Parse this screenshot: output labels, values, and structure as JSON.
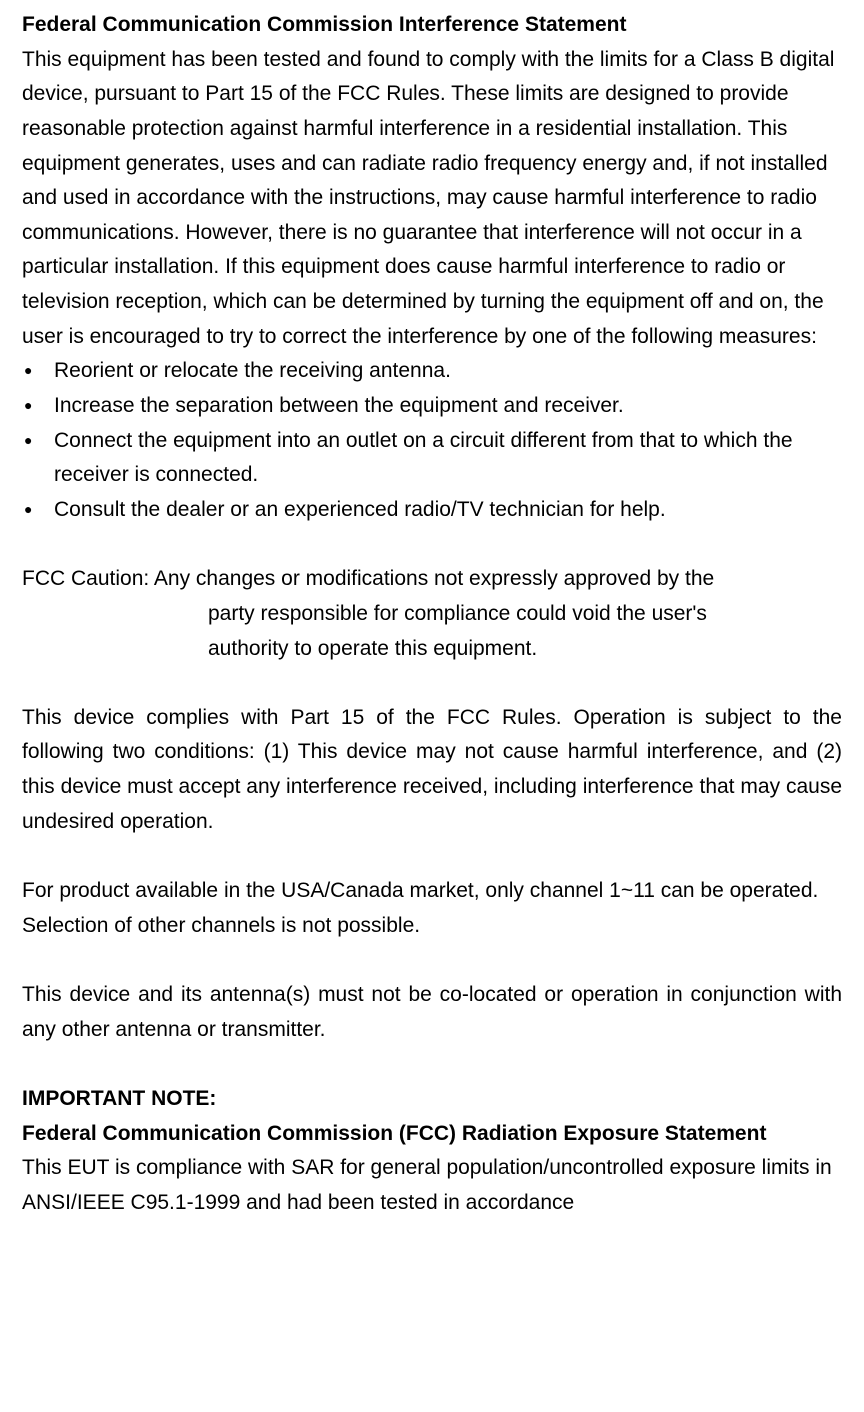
{
  "doc": {
    "heading1": "Federal Communication Commission Interference Statement",
    "intro": "This equipment has been tested and found to comply with the limits for a Class B digital device, pursuant to Part 15 of the FCC Rules. These limits are designed to provide reasonable protection against harmful interference in a residential installation. This equipment generates, uses and can radiate radio frequency energy and, if not installed and used in accordance with the instructions, may cause harmful interference to radio communications. However, there is no guarantee that interference will not occur in a particular installation. If this equipment does cause harmful interference to radio or television reception, which can be determined by turning the equipment off and on, the user is encouraged to try to correct the interference by one of the following measures:",
    "bullets": [
      "Reorient or relocate the receiving antenna.",
      "Increase the separation between the equipment and receiver.",
      "Connect the equipment into an outlet on a circuit different from that to which the receiver is connected.",
      "Consult the dealer or an experienced radio/TV technician for help."
    ],
    "caution_line1": "FCC Caution: Any changes or modifications not expressly approved by the",
    "caution_line2": "party responsible for compliance could void the user's",
    "caution_line3": "authority to operate this equipment.",
    "part15": "This device complies with Part 15 of the FCC Rules. Operation is subject to the following two conditions: (1) This device may not cause harmful interference, and (2) this device must accept any interference received, including interference that may cause undesired operation.",
    "channel_note": "For product available in the USA/Canada market, only channel 1~11 can be operated. Selection of other channels is not possible.",
    "antenna_note": "This device and its antenna(s) must not be co-located or operation in conjunction with any other antenna or transmitter.",
    "important_note_label": "IMPORTANT NOTE:",
    "heading2": "Federal Communication Commission (FCC) Radiation Exposure Statement",
    "sar_note": "This EUT is compliance with SAR for general population/uncontrolled exposure limits in ANSI/IEEE C95.1-1999 and had been tested in accordance"
  }
}
